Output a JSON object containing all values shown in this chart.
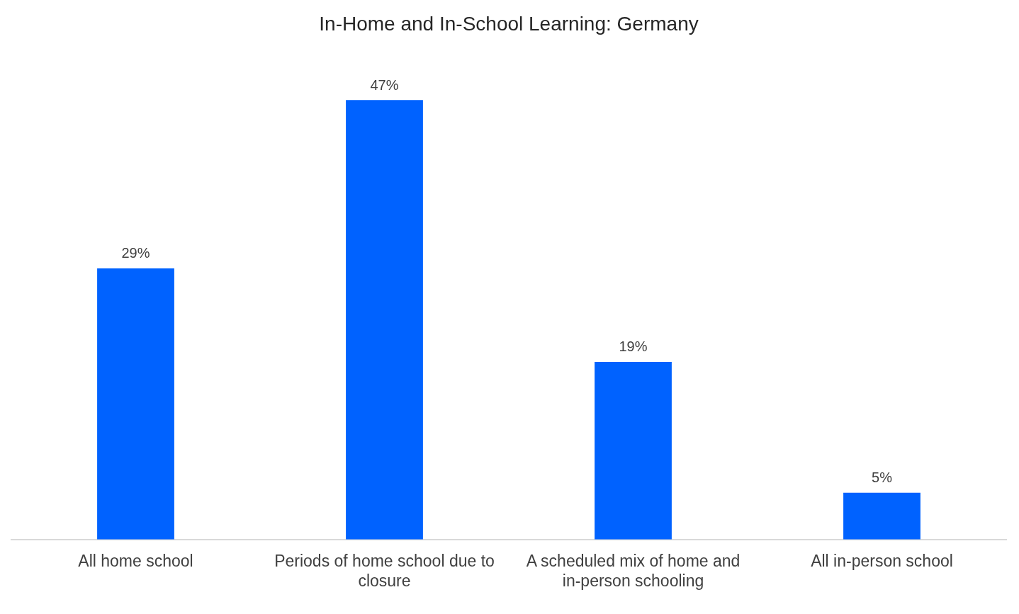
{
  "chart_data": {
    "type": "bar",
    "title": "In-Home and In-School Learning: Germany",
    "categories": [
      "All home school",
      "Periods of home school due to closure",
      "A scheduled mix of home and in-person schooling",
      "All in-person school"
    ],
    "values": [
      29,
      47,
      19,
      5
    ],
    "value_labels": [
      "29%",
      "47%",
      "19%",
      "5%"
    ],
    "color": "#0062ff",
    "grid": false,
    "legend": false
  }
}
